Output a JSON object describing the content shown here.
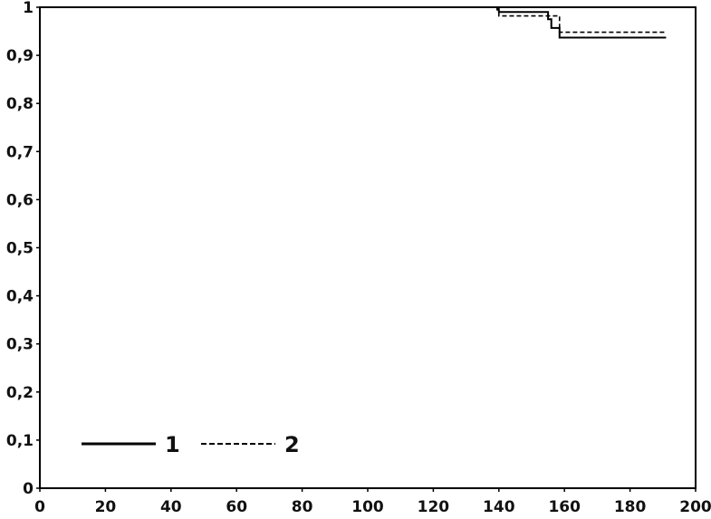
{
  "chart_data": {
    "type": "line",
    "line_shape": "step",
    "title": "",
    "xlabel": "",
    "ylabel": "",
    "xlim": [
      0,
      200
    ],
    "ylim": [
      0,
      1
    ],
    "x_ticks": [
      0,
      20,
      40,
      60,
      80,
      100,
      120,
      140,
      160,
      180,
      200
    ],
    "x_tick_labels": [
      "0",
      "20",
      "40",
      "60",
      "80",
      "100",
      "120",
      "140",
      "160",
      "180",
      "200"
    ],
    "y_ticks": [
      0,
      0.1,
      0.2,
      0.3,
      0.4,
      0.5,
      0.6,
      0.7,
      0.8,
      0.9,
      1
    ],
    "y_tick_labels": [
      "0",
      "0,1",
      "0,2",
      "0,3",
      "0,4",
      "0,5",
      "0,6",
      "0,7",
      "0,8",
      "0,9",
      "1"
    ],
    "grid": false,
    "legend_position": "bottom-left",
    "series": [
      {
        "name": "1",
        "style": "solid",
        "color": "#000000",
        "points": [
          [
            0,
            1
          ],
          [
            139.5,
            1
          ],
          [
            139.5,
            0.995
          ],
          [
            140,
            0.995
          ],
          [
            140,
            0.99
          ],
          [
            155,
            0.99
          ],
          [
            155,
            0.975
          ],
          [
            156,
            0.975
          ],
          [
            156,
            0.957
          ],
          [
            158.5,
            0.957
          ],
          [
            158.5,
            0.937
          ],
          [
            191,
            0.937
          ]
        ]
      },
      {
        "name": "2",
        "style": "dashed",
        "color": "#000000",
        "points": [
          [
            0,
            1
          ],
          [
            140,
            1
          ],
          [
            140,
            0.982
          ],
          [
            158.5,
            0.982
          ],
          [
            158.5,
            0.948
          ],
          [
            191,
            0.948
          ]
        ]
      }
    ]
  }
}
